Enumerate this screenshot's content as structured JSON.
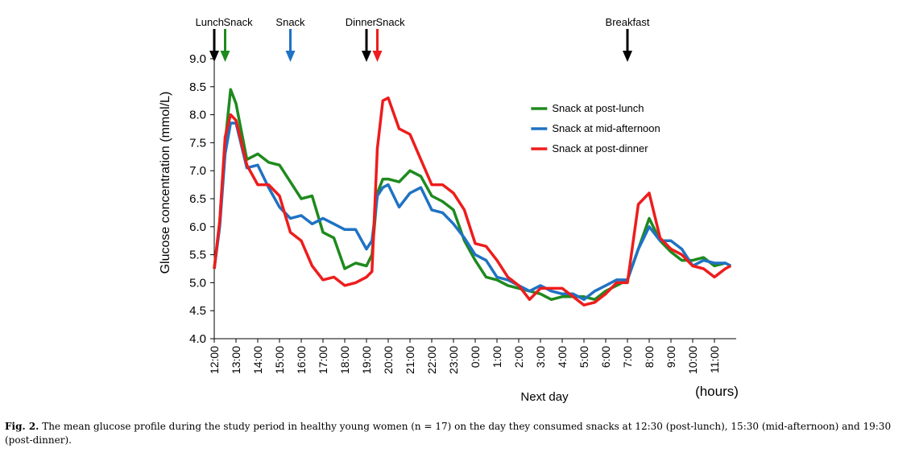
{
  "chart_data": {
    "type": "line",
    "y_label": "Glucose concentration (mmol/L)",
    "x_label": "Next day",
    "x_unit": "(hours)",
    "x": [
      0,
      0.25,
      0.5,
      0.75,
      1,
      1.5,
      2,
      2.5,
      3,
      3.5,
      4,
      4.5,
      5,
      5.5,
      6,
      6.5,
      7,
      7.25,
      7.5,
      7.75,
      8,
      8.5,
      9,
      9.5,
      10,
      10.5,
      11,
      11.5,
      12,
      12.5,
      13,
      13.5,
      14,
      14.5,
      15,
      15.5,
      16,
      16.5,
      17,
      17.5,
      18,
      18.5,
      19,
      19.5,
      20,
      20.5,
      21,
      21.5,
      22,
      22.5,
      23,
      23.5,
      23.75
    ],
    "series": [
      {
        "name": "Snack at post-lunch",
        "color": "#1e8a1e",
        "values": [
          5.25,
          6.1,
          7.5,
          8.45,
          8.2,
          7.2,
          7.3,
          7.15,
          7.1,
          6.8,
          6.5,
          6.55,
          5.9,
          5.8,
          5.25,
          5.35,
          5.3,
          5.5,
          6.6,
          6.85,
          6.85,
          6.8,
          7.0,
          6.9,
          6.55,
          6.45,
          6.3,
          5.75,
          5.4,
          5.1,
          5.05,
          4.95,
          4.9,
          4.85,
          4.8,
          4.7,
          4.75,
          4.75,
          4.75,
          4.7,
          4.85,
          4.95,
          5.05,
          5.6,
          6.15,
          5.75,
          5.55,
          5.4,
          5.4,
          5.45,
          5.3,
          5.35,
          5.3
        ]
      },
      {
        "name": "Snack at mid-afternoon",
        "color": "#1f72c4",
        "values": [
          5.25,
          6.0,
          7.3,
          7.85,
          7.85,
          7.05,
          7.1,
          6.7,
          6.35,
          6.15,
          6.2,
          6.05,
          6.15,
          6.05,
          5.95,
          5.95,
          5.6,
          5.75,
          6.55,
          6.7,
          6.75,
          6.35,
          6.6,
          6.7,
          6.3,
          6.25,
          6.05,
          5.8,
          5.5,
          5.4,
          5.1,
          5.05,
          4.95,
          4.85,
          4.95,
          4.85,
          4.8,
          4.8,
          4.7,
          4.85,
          4.95,
          5.05,
          5.05,
          5.6,
          6.0,
          5.75,
          5.75,
          5.6,
          5.3,
          5.4,
          5.35,
          5.35,
          5.3
        ]
      },
      {
        "name": "Snack at post-dinner",
        "color": "#ee1c1c",
        "values": [
          5.25,
          6.1,
          7.6,
          8.0,
          7.9,
          7.1,
          6.75,
          6.75,
          6.55,
          5.9,
          5.75,
          5.3,
          5.05,
          5.1,
          4.95,
          5.0,
          5.1,
          5.2,
          7.4,
          8.25,
          8.3,
          7.75,
          7.65,
          7.2,
          6.75,
          6.75,
          6.6,
          6.3,
          5.7,
          5.65,
          5.4,
          5.1,
          4.95,
          4.7,
          4.9,
          4.9,
          4.9,
          4.75,
          4.6,
          4.65,
          4.8,
          5.0,
          5.0,
          6.4,
          6.6,
          5.8,
          5.6,
          5.5,
          5.3,
          5.25,
          5.1,
          5.25,
          5.3
        ]
      }
    ],
    "xlim": [
      0,
      24
    ],
    "xticks": [
      {
        "value": 0,
        "label": "12:00"
      },
      {
        "value": 1,
        "label": "13:00"
      },
      {
        "value": 2,
        "label": "14:00"
      },
      {
        "value": 3,
        "label": "15:00"
      },
      {
        "value": 4,
        "label": "16:00"
      },
      {
        "value": 5,
        "label": "17:00"
      },
      {
        "value": 6,
        "label": "18:00"
      },
      {
        "value": 7,
        "label": "19:00"
      },
      {
        "value": 8,
        "label": "20:00"
      },
      {
        "value": 9,
        "label": "21:00"
      },
      {
        "value": 10,
        "label": "22:00"
      },
      {
        "value": 11,
        "label": "23:00"
      },
      {
        "value": 12,
        "label": "0:00"
      },
      {
        "value": 13,
        "label": "1:00"
      },
      {
        "value": 14,
        "label": "2:00"
      },
      {
        "value": 15,
        "label": "3:00"
      },
      {
        "value": 16,
        "label": "4:00"
      },
      {
        "value": 17,
        "label": "5:00"
      },
      {
        "value": 18,
        "label": "6:00"
      },
      {
        "value": 19,
        "label": "7:00"
      },
      {
        "value": 20,
        "label": "8:00"
      },
      {
        "value": 21,
        "label": "9:00"
      },
      {
        "value": 22,
        "label": "10:00"
      },
      {
        "value": 23,
        "label": "11:00"
      }
    ],
    "ylim": [
      4,
      9
    ],
    "yticks": [
      {
        "value": 4,
        "label": "4.0"
      },
      {
        "value": 4.5,
        "label": "4.5"
      },
      {
        "value": 5,
        "label": "5.0"
      },
      {
        "value": 5.5,
        "label": "5.5"
      },
      {
        "value": 6,
        "label": "6.0"
      },
      {
        "value": 6.5,
        "label": "6.5"
      },
      {
        "value": 7,
        "label": "7.0"
      },
      {
        "value": 7.5,
        "label": "7.5"
      },
      {
        "value": 8,
        "label": "8.0"
      },
      {
        "value": 8.5,
        "label": "8.5"
      },
      {
        "value": 9,
        "label": "9.0"
      }
    ],
    "grid": false,
    "legend": "upper right",
    "annotations": [
      {
        "text": "Lunch",
        "x": 0,
        "color": "#000000"
      },
      {
        "text": "Snack",
        "x": 0.5,
        "color": "#1e8a1e"
      },
      {
        "text": "Snack",
        "x": 3.5,
        "color": "#1f72c4"
      },
      {
        "text": "Dinner",
        "x": 7,
        "color": "#000000"
      },
      {
        "text": "Snack",
        "x": 7.5,
        "color": "#ee1c1c"
      },
      {
        "text": "Breakfast",
        "x": 19,
        "color": "#000000"
      }
    ]
  },
  "caption": {
    "label": "Fig. 2.",
    "text": "The mean glucose profile during the study period in healthy young women (n = 17) on the day they consumed snacks at 12:30 (post-lunch), 15:30 (mid-afternoon) and 19:30 (post-dinner)."
  }
}
